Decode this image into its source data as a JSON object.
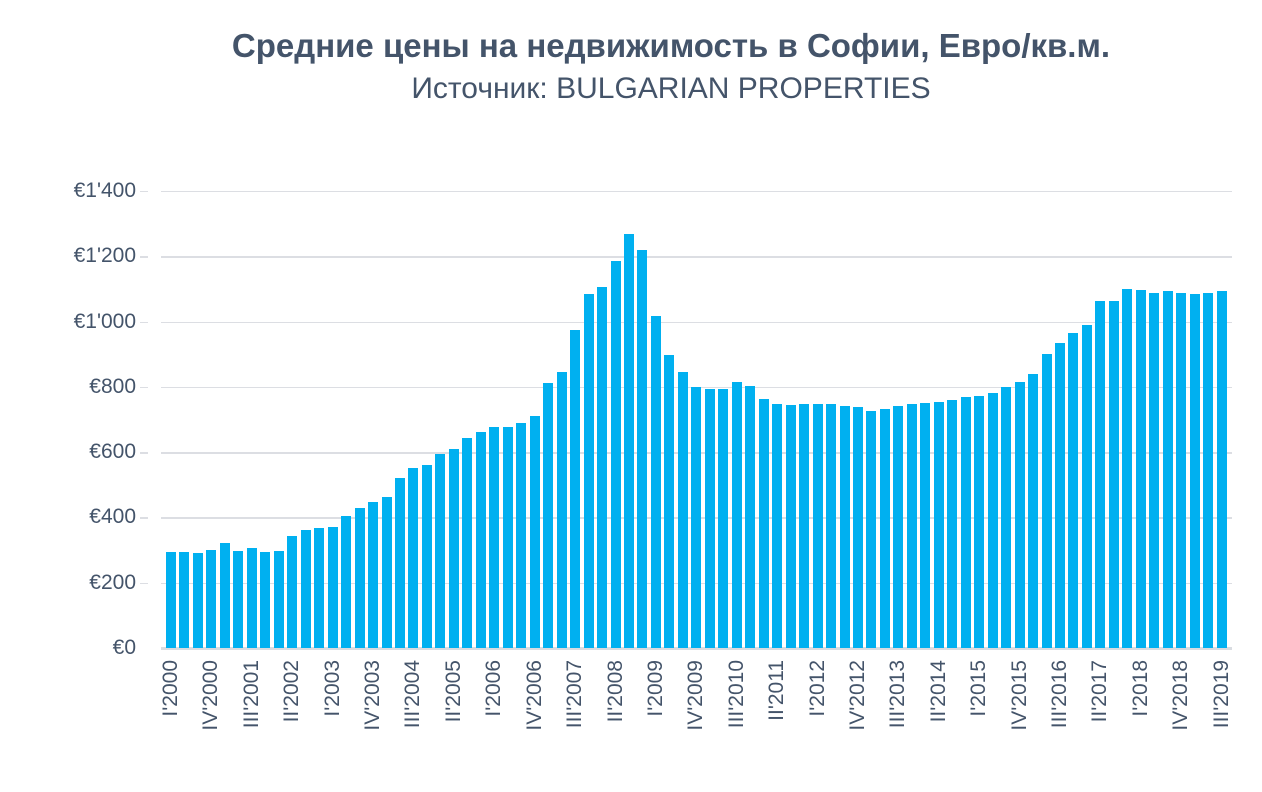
{
  "colors": {
    "bar": "#00B0F0",
    "text": "#44546A",
    "gridline": "#DCDEE3"
  },
  "chart_data": {
    "type": "bar",
    "title": "Средние цены на недвижимость в Софии, Евро/кв.м.",
    "subtitle": "Источник: BULGARIAN PROPERTIES",
    "xlabel": "",
    "ylabel": "",
    "ylim": [
      0,
      1400
    ],
    "ytick_step": 200,
    "ytick_labels": [
      "€0",
      "€200",
      "€400",
      "€600",
      "€800",
      "€1'000",
      "€1'200",
      "€1'400"
    ],
    "grid": "horizontal",
    "legend": "none",
    "xtick_every": 3,
    "xtick_labels_visible": [
      "I'2000",
      "IV'2000",
      "III'2001",
      "II'2002",
      "I'2003",
      "IV'2003",
      "III'2004",
      "II'2005",
      "I'2006",
      "IV'2006",
      "III'2007",
      "II'2008",
      "I'2009",
      "IV'2009",
      "III'2010",
      "II'2011",
      "I'2012",
      "IV'2012",
      "III'2013",
      "II'2014",
      "I'2015",
      "IV'2015",
      "III'2016",
      "II'2017",
      "I'2018",
      "IV'2018",
      "III'2019"
    ],
    "categories": [
      "I'2000",
      "II'2000",
      "III'2000",
      "IV'2000",
      "I'2001",
      "II'2001",
      "III'2001",
      "IV'2001",
      "I'2002",
      "II'2002",
      "III'2002",
      "IV'2002",
      "I'2003",
      "II'2003",
      "III'2003",
      "IV'2003",
      "I'2004",
      "II'2004",
      "III'2004",
      "IV'2004",
      "I'2005",
      "II'2005",
      "III'2005",
      "IV'2005",
      "I'2006",
      "II'2006",
      "III'2006",
      "IV'2006",
      "I'2007",
      "II'2007",
      "III'2007",
      "IV'2007",
      "I'2008",
      "II'2008",
      "III'2008",
      "IV'2008",
      "I'2009",
      "II'2009",
      "III'2009",
      "IV'2009",
      "I'2010",
      "II'2010",
      "III'2010",
      "IV'2010",
      "I'2011",
      "II'2011",
      "III'2011",
      "IV'2011",
      "I'2012",
      "II'2012",
      "III'2012",
      "IV'2012",
      "I'2013",
      "II'2013",
      "III'2013",
      "IV'2013",
      "I'2014",
      "II'2014",
      "III'2014",
      "IV'2014",
      "I'2015",
      "II'2015",
      "III'2015",
      "IV'2015",
      "I'2016",
      "II'2016",
      "III'2016",
      "IV'2016",
      "I'2017",
      "II'2017",
      "III'2017",
      "IV'2017",
      "I'2018",
      "II'2018",
      "III'2018",
      "IV'2018",
      "I'2019",
      "II'2019",
      "III'2019"
    ],
    "values": [
      295,
      295,
      291,
      299,
      321,
      297,
      306,
      295,
      297,
      342,
      360,
      368,
      371,
      403,
      430,
      446,
      463,
      520,
      550,
      561,
      594,
      610,
      643,
      662,
      677,
      678,
      689,
      712,
      813,
      845,
      975,
      1083,
      1107,
      1186,
      1268,
      1220,
      1016,
      898,
      844,
      799,
      793,
      793,
      815,
      802,
      764,
      749,
      744,
      746,
      749,
      749,
      741,
      737,
      726,
      733,
      741,
      749,
      751,
      754,
      759,
      770,
      773,
      781,
      800,
      815,
      838,
      902,
      933,
      966,
      989,
      1062,
      1062,
      1100,
      1096,
      1089,
      1093,
      1089,
      1084,
      1086,
      1094
    ]
  }
}
